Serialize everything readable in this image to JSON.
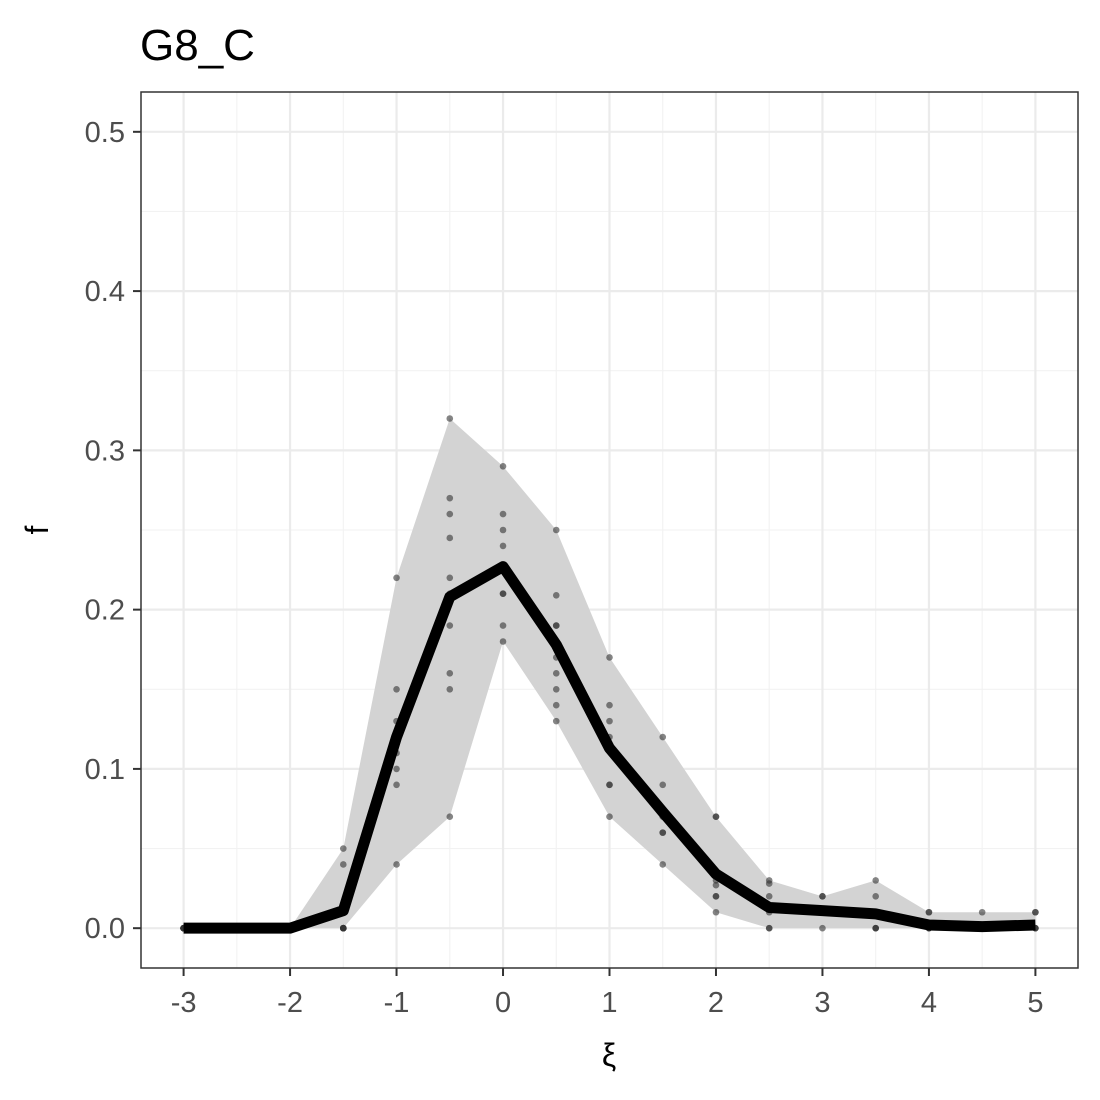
{
  "chart_data": {
    "type": "line",
    "title": "G8_C",
    "xlabel": "ξ",
    "ylabel": "f",
    "xlim": [
      -3.4,
      5.4
    ],
    "ylim": [
      -0.025,
      0.525
    ],
    "x_ticks": [
      -3,
      -2,
      -1,
      0,
      1,
      2,
      3,
      4,
      5
    ],
    "x_tick_labels": [
      "-3",
      "-2",
      "-1",
      "0",
      "1",
      "2",
      "3",
      "4",
      "5"
    ],
    "y_ticks": [
      0.0,
      0.1,
      0.2,
      0.3,
      0.4,
      0.5
    ],
    "y_tick_labels": [
      "0.0",
      "0.1",
      "0.2",
      "0.3",
      "0.4",
      "0.5"
    ],
    "grid": true,
    "colors": {
      "line": "#000000",
      "band": "#d3d3d3",
      "points": "#333333",
      "panel_border": "#333333"
    },
    "mean_line": {
      "x": [
        -3,
        -2.5,
        -2,
        -1.5,
        -1,
        -0.5,
        0,
        0.5,
        1,
        1.5,
        2,
        2.5,
        3,
        3.5,
        4,
        4.5,
        5
      ],
      "y": [
        0,
        0,
        0,
        0.011,
        0.12,
        0.208,
        0.227,
        0.178,
        0.113,
        0.073,
        0.034,
        0.013,
        0.011,
        0.009,
        0.002,
        0.001,
        0.002
      ]
    },
    "band": {
      "x": [
        -3,
        -2.5,
        -2,
        -1.5,
        -1,
        -0.5,
        0,
        0.5,
        1,
        1.5,
        2,
        2.5,
        3,
        3.5,
        4,
        4.5,
        5
      ],
      "upper": [
        0,
        0,
        0,
        0.05,
        0.22,
        0.32,
        0.29,
        0.25,
        0.17,
        0.12,
        0.07,
        0.03,
        0.02,
        0.03,
        0.01,
        0.01,
        0.01
      ],
      "lower": [
        0,
        0,
        0,
        0,
        0.04,
        0.07,
        0.18,
        0.13,
        0.07,
        0.04,
        0.01,
        0,
        0,
        0,
        0,
        0,
        0
      ]
    },
    "points": [
      {
        "x": -3,
        "y": [
          0,
          0,
          0,
          0,
          0,
          0,
          0,
          0,
          0,
          0
        ]
      },
      {
        "x": -2.5,
        "y": [
          0,
          0,
          0,
          0,
          0,
          0,
          0,
          0,
          0,
          0
        ]
      },
      {
        "x": -2,
        "y": [
          0,
          0,
          0,
          0,
          0,
          0,
          0,
          0,
          0,
          0
        ]
      },
      {
        "x": -1.5,
        "y": [
          0.05,
          0.04,
          0,
          0,
          0,
          0,
          0,
          0,
          0,
          0
        ]
      },
      {
        "x": -1,
        "y": [
          0.22,
          0.15,
          0.13,
          0.12,
          0.11,
          0.1,
          0.09,
          0.04
        ]
      },
      {
        "x": -0.5,
        "y": [
          0.32,
          0.27,
          0.26,
          0.245,
          0.22,
          0.21,
          0.19,
          0.16,
          0.15,
          0.07
        ]
      },
      {
        "x": 0,
        "y": [
          0.29,
          0.26,
          0.25,
          0.24,
          0.21,
          0.21,
          0.19,
          0.18
        ]
      },
      {
        "x": 0.5,
        "y": [
          0.25,
          0.209,
          0.19,
          0.19,
          0.17,
          0.16,
          0.15,
          0.14,
          0.13
        ]
      },
      {
        "x": 1,
        "y": [
          0.17,
          0.14,
          0.13,
          0.12,
          0.09,
          0.09,
          0.07
        ]
      },
      {
        "x": 1.5,
        "y": [
          0.12,
          0.09,
          0.07,
          0.06,
          0.06,
          0.04
        ]
      },
      {
        "x": 2,
        "y": [
          0.07,
          0.07,
          0.03,
          0.027,
          0.02,
          0.02,
          0.01
        ]
      },
      {
        "x": 2.5,
        "y": [
          0.03,
          0.028,
          0.02,
          0.01,
          0,
          0
        ]
      },
      {
        "x": 3,
        "y": [
          0.02,
          0.02,
          0.01,
          0.01,
          0
        ]
      },
      {
        "x": 3.5,
        "y": [
          0.03,
          0.02,
          0,
          0,
          0
        ]
      },
      {
        "x": 4,
        "y": [
          0.01,
          0.01,
          0,
          0,
          0
        ]
      },
      {
        "x": 4.5,
        "y": [
          0.01,
          0,
          0,
          0,
          0
        ]
      },
      {
        "x": 5,
        "y": [
          0.01,
          0.01,
          0,
          0,
          0
        ]
      }
    ]
  }
}
